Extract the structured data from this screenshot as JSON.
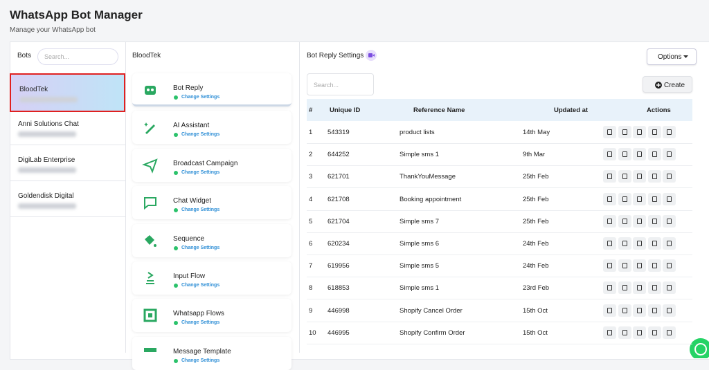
{
  "header": {
    "title": "WhatsApp Bot Manager",
    "subtitle": "Manage your WhatsApp bot"
  },
  "bots": {
    "title": "Bots",
    "search_placeholder": "Search...",
    "items": [
      "BloodTek",
      "Anni Solutions Chat",
      "DigiLab Enterprise",
      "Goldendisk Digital"
    ]
  },
  "features": {
    "title": "BloodTek",
    "action": "Change Settings",
    "items": [
      "Bot Reply",
      "AI Assistant",
      "Broadcast Campaign",
      "Chat Widget",
      "Sequence",
      "Input Flow",
      "Whatsapp Flows",
      "Message Template"
    ]
  },
  "settings": {
    "title": "Bot Reply Settings",
    "options": "Options",
    "search_placeholder": "Search...",
    "create": "Create",
    "table": {
      "columns": [
        "#",
        "Unique ID",
        "Reference Name",
        "Updated at",
        "Actions"
      ],
      "rows": [
        [
          "1",
          "543319",
          "product lists",
          "14th May"
        ],
        [
          "2",
          "644252",
          "Simple sms 1",
          "9th Mar"
        ],
        [
          "3",
          "621701",
          "ThankYouMessage",
          "25th Feb"
        ],
        [
          "4",
          "621708",
          "Booking appointment",
          "25th Feb"
        ],
        [
          "5",
          "621704",
          "Simple sms 7",
          "25th Feb"
        ],
        [
          "6",
          "620234",
          "Simple sms 6",
          "24th Feb"
        ],
        [
          "7",
          "619956",
          "Simple sms 5",
          "24th Feb"
        ],
        [
          "8",
          "618853",
          "Simple sms 1",
          "23rd Feb"
        ],
        [
          "9",
          "446998",
          "Shopify Cancel Order",
          "15th Oct"
        ],
        [
          "10",
          "446995",
          "Shopify Confirm Order",
          "15th Oct"
        ]
      ]
    }
  }
}
